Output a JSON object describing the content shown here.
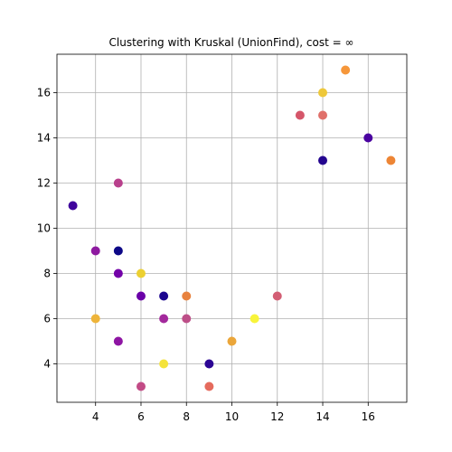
{
  "chart_data": {
    "type": "scatter",
    "title": "Clustering with Kruskal (UnionFind), cost = ∞",
    "xlabel": "",
    "ylabel": "",
    "xlim": [
      2.3,
      17.7
    ],
    "ylim": [
      2.3,
      17.7
    ],
    "xticks": [
      4,
      6,
      8,
      10,
      12,
      14,
      16
    ],
    "yticks": [
      4,
      6,
      8,
      10,
      12,
      14,
      16
    ],
    "grid": true,
    "points": [
      {
        "x": 3,
        "y": 11,
        "color": "#3f049c"
      },
      {
        "x": 4,
        "y": 9,
        "color": "#8e1aa0"
      },
      {
        "x": 4,
        "y": 6,
        "color": "#eeb43a"
      },
      {
        "x": 5,
        "y": 12,
        "color": "#b8408c"
      },
      {
        "x": 5,
        "y": 9,
        "color": "#0d0887"
      },
      {
        "x": 5,
        "y": 8,
        "color": "#7301a8"
      },
      {
        "x": 5,
        "y": 5,
        "color": "#8e15a3"
      },
      {
        "x": 6,
        "y": 8,
        "color": "#ecd032"
      },
      {
        "x": 6,
        "y": 7,
        "color": "#6a00a8"
      },
      {
        "x": 6,
        "y": 3,
        "color": "#c24b86"
      },
      {
        "x": 7,
        "y": 7,
        "color": "#1c068f"
      },
      {
        "x": 7,
        "y": 6,
        "color": "#a3299c"
      },
      {
        "x": 7,
        "y": 4,
        "color": "#f4e33b"
      },
      {
        "x": 8,
        "y": 7,
        "color": "#e8823e"
      },
      {
        "x": 8,
        "y": 6,
        "color": "#bd4f88"
      },
      {
        "x": 9,
        "y": 4,
        "color": "#2c0594"
      },
      {
        "x": 9,
        "y": 3,
        "color": "#e56b5d"
      },
      {
        "x": 10,
        "y": 5,
        "color": "#eba63a"
      },
      {
        "x": 11,
        "y": 6,
        "color": "#f8f43a"
      },
      {
        "x": 12,
        "y": 7,
        "color": "#d35e74"
      },
      {
        "x": 13,
        "y": 15,
        "color": "#d5566a"
      },
      {
        "x": 14,
        "y": 16,
        "color": "#eec83a"
      },
      {
        "x": 14,
        "y": 15,
        "color": "#e0706a"
      },
      {
        "x": 14,
        "y": 13,
        "color": "#24058f"
      },
      {
        "x": 15,
        "y": 17,
        "color": "#f6973a"
      },
      {
        "x": 16,
        "y": 14,
        "color": "#4a02a0"
      },
      {
        "x": 17,
        "y": 13,
        "color": "#ed8535"
      }
    ]
  }
}
